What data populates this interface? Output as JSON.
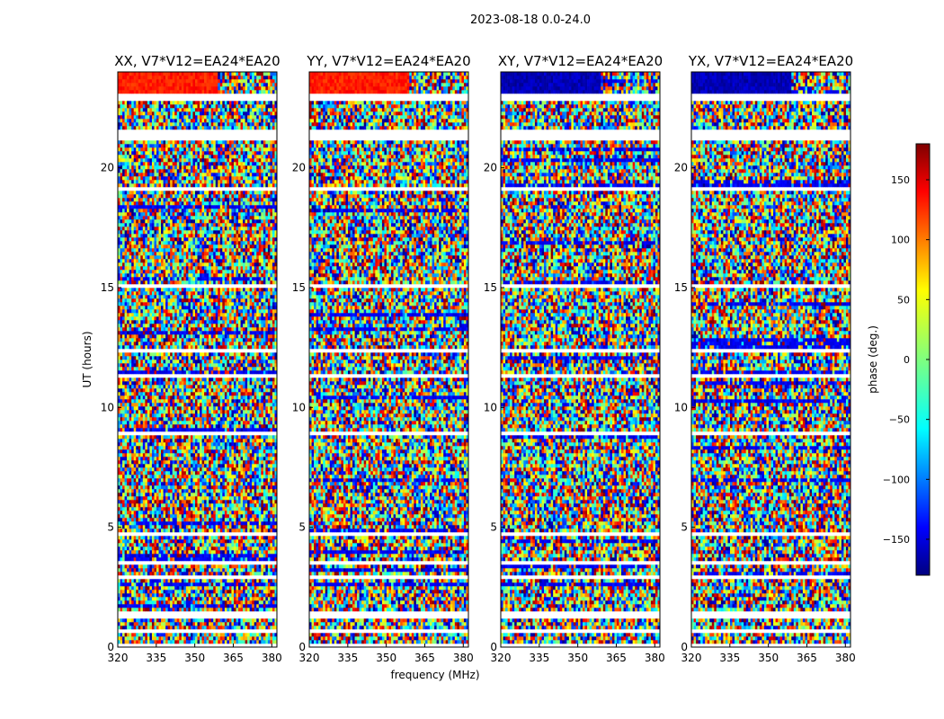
{
  "figure": {
    "suptitle": "2023-08-18 0.0-24.0"
  },
  "chart_data": {
    "type": "heatmap",
    "panels": [
      {
        "title": "XX, V7*V12=EA24*EA20",
        "pol": "XX"
      },
      {
        "title": "YY, V7*V12=EA24*EA20",
        "pol": "YY"
      },
      {
        "title": "XY, V7*V12=EA24*EA20",
        "pol": "XY"
      },
      {
        "title": "YX, V7*V12=EA24*EA20",
        "pol": "YX"
      }
    ],
    "xlabel": "frequency (MHz)",
    "ylabel": "UT (hours)",
    "xlim": [
      320,
      382
    ],
    "ylim": [
      0,
      24
    ],
    "xticks": [
      320,
      335,
      350,
      365,
      380
    ],
    "yticks": [
      0,
      5,
      10,
      15,
      20
    ],
    "colorbar": {
      "label": "phase (deg.)",
      "range": [
        -180,
        180
      ],
      "ticks": [
        150,
        100,
        50,
        0,
        -50,
        -100,
        -150
      ],
      "tick_labels": [
        "150",
        "100",
        "50",
        "0",
        "−50",
        "−100",
        "−150"
      ],
      "colormap": "jet"
    },
    "flagged_hours": [
      [
        0.0,
        0.1
      ],
      [
        0.4,
        0.45
      ],
      [
        0.62,
        0.7
      ],
      [
        0.85,
        0.9
      ],
      [
        1.15,
        1.35
      ],
      [
        1.4,
        1.55
      ],
      [
        2.9,
        3.0
      ],
      [
        3.45,
        3.55
      ],
      [
        4.6,
        4.85
      ],
      [
        5.2,
        5.3
      ],
      [
        8.85,
        8.95
      ],
      [
        11.25,
        11.4
      ],
      [
        12.3,
        12.45
      ],
      [
        15.05,
        15.2
      ],
      [
        19.05,
        19.15
      ],
      [
        21.2,
        21.65
      ],
      [
        22.85,
        22.95
      ],
      [
        23.0,
        23.05
      ]
    ],
    "features": {
      "XX": {
        "coherent_top_band_hours": [
          22.9,
          24.0
        ],
        "coherent_phase_deg": 125,
        "noise_phase_deg": 10
      },
      "YY": {
        "coherent_top_band_hours": [
          22.9,
          24.0
        ],
        "coherent_phase_deg": 125,
        "noise_phase_deg": 10
      },
      "XY": {
        "coherent_top_band_hours": [
          22.9,
          24.0
        ],
        "coherent_phase_deg": -160,
        "noise_phase_deg": 0
      },
      "YX": {
        "coherent_top_band_hours": [
          22.9,
          24.0
        ],
        "coherent_phase_deg": -160,
        "noise_phase_deg": 0
      }
    }
  }
}
